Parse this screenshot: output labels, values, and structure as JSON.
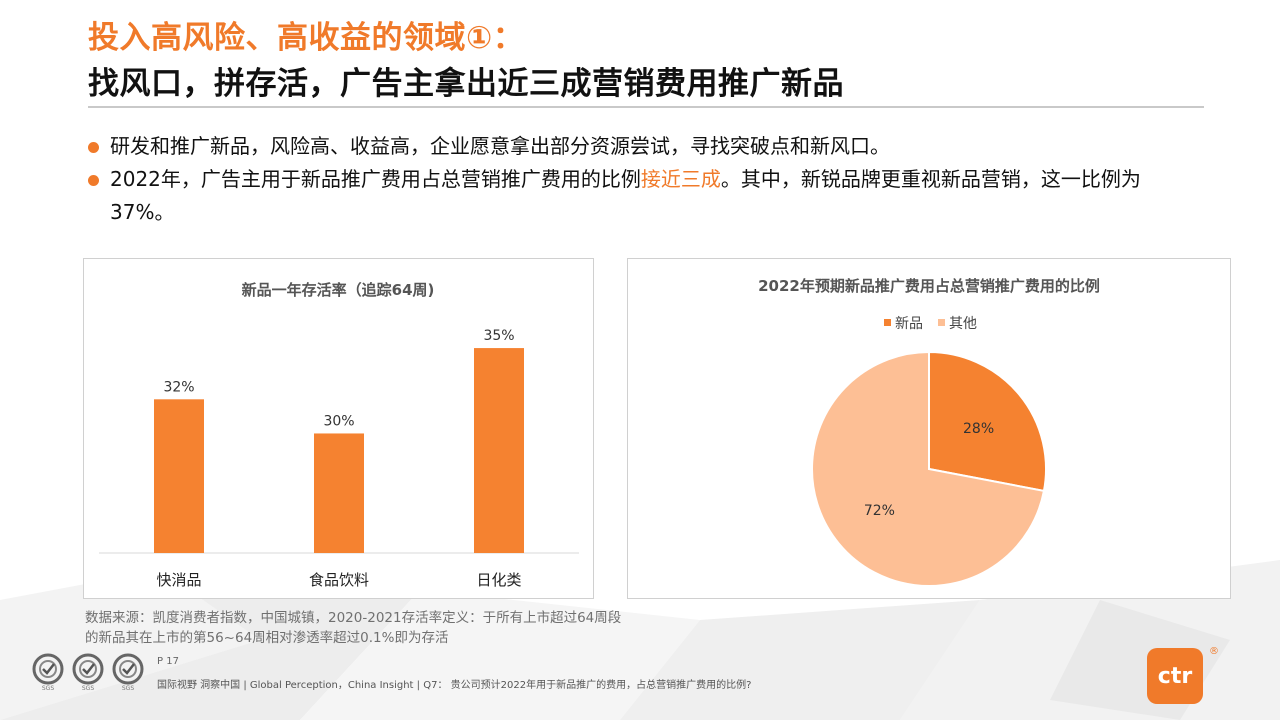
{
  "title": {
    "line1": "投入高风险、高收益的领域①：",
    "line2": "找风口，拼存活，广告主拿出近三成营销费用推广新品"
  },
  "bullets": [
    {
      "text": "研发和推广新品，风险高、收益高，企业愿意拿出部分资源尝试，寻找突破点和新风口。"
    },
    {
      "pre": "2022年，广告主用于新品推广费用占总营销推广费用的比例",
      "highlight": "接近三成",
      "post": "。其中，新锐品牌更重视新品营销，这一比例为37%。"
    }
  ],
  "colors": {
    "accent": "#f07a2a",
    "bar": "#f58230",
    "pie_new": "#f58230",
    "pie_other": "#fdbf95"
  },
  "chart_data": [
    {
      "type": "bar",
      "title": "新品一年存活率（追踪64周)",
      "categories": [
        "快消品",
        "食品饮料",
        "日化类"
      ],
      "values": [
        32,
        30,
        35
      ],
      "value_labels": [
        "32%",
        "30%",
        "35%"
      ],
      "ylim": [
        23,
        36
      ],
      "grid": false
    },
    {
      "type": "pie",
      "title": "2022年预期新品推广费用占总营销推广费用的比例",
      "labels": [
        "新品",
        "其他"
      ],
      "values": [
        28,
        72
      ],
      "value_labels": [
        "28%",
        "72%"
      ],
      "legend": "top"
    }
  ],
  "source": "数据来源：凯度消费者指数，中国城镇，2020-2021存活率定义：于所有上市超过64周段的新品其在上市的第56~64周相对渗透率超过0.1%即为存活",
  "page": "P 17",
  "footer": "国际视野  洞察中国 |  Global Perception，China Insight  | Q7：  贵公司预计2022年用于新品推广的费用，占总营销推广费用的比例?",
  "seal_label": "SGS",
  "logo": {
    "text": "ctr",
    "mark": "®"
  }
}
